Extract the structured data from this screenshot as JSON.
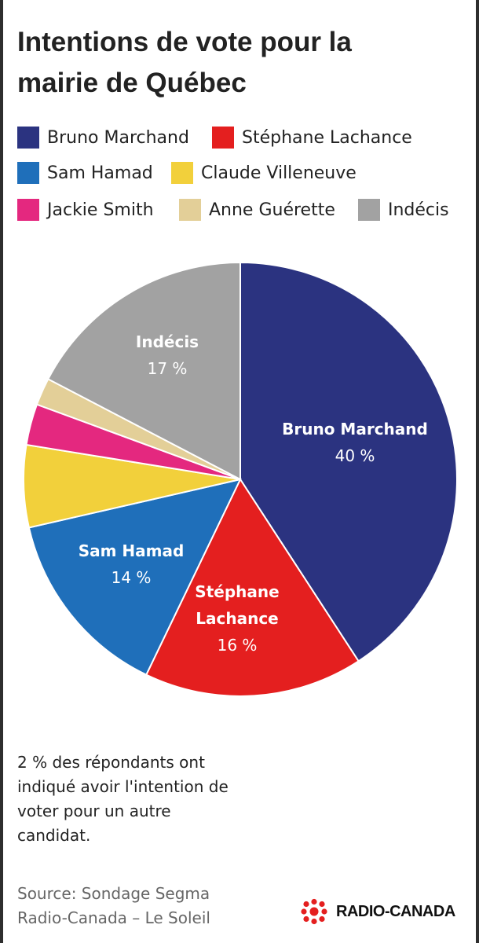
{
  "title_line1": "Intentions de vote pour la",
  "title_line2": "mairie de Québec",
  "legend": [
    {
      "label": "Bruno Marchand",
      "color": "#2b3380"
    },
    {
      "label": "Stéphane Lachance",
      "color": "#e41f1f"
    },
    {
      "label": "Sam Hamad",
      "color": "#1f6fba"
    },
    {
      "label": "Claude Villeneuve",
      "color": "#f2d03b"
    },
    {
      "label": "Jackie Smith",
      "color": "#e4287f"
    },
    {
      "label": "Anne Guérette",
      "color": "#e3cf98"
    },
    {
      "label": "Indécis",
      "color": "#a2a2a2"
    }
  ],
  "chart_data": {
    "type": "pie",
    "title": "Intentions de vote pour la mairie de Québec",
    "slices": [
      {
        "name": "Bruno Marchand",
        "value": 40,
        "label_lines": [
          "Bruno Marchand"
        ],
        "value_label": "40 %",
        "color": "#2b3380"
      },
      {
        "name": "Stéphane Lachance",
        "value": 16,
        "label_lines": [
          "Stéphane",
          "Lachance"
        ],
        "value_label": "16 %",
        "color": "#e41f1f"
      },
      {
        "name": "Sam Hamad",
        "value": 14,
        "label_lines": [
          "Sam Hamad"
        ],
        "value_label": "14 %",
        "color": "#1f6fba"
      },
      {
        "name": "Claude Villeneuve",
        "value": 6,
        "label_lines": [],
        "value_label": "",
        "color": "#f2d03b"
      },
      {
        "name": "Jackie Smith",
        "value": 3,
        "label_lines": [],
        "value_label": "",
        "color": "#e4287f"
      },
      {
        "name": "Anne Guérette",
        "value": 2,
        "label_lines": [],
        "value_label": "",
        "color": "#e3cf98"
      },
      {
        "name": "Indécis",
        "value": 17,
        "label_lines": [
          "Indécis"
        ],
        "value_label": "17 %",
        "color": "#a2a2a2"
      }
    ],
    "legend_position": "top"
  },
  "note_lines": [
    "2 % des répondants ont",
    "indiqué avoir l'intention de",
    "voter pour un autre",
    "candidat."
  ],
  "source_lines": [
    "Source: Sondage Segma",
    "Radio-Canada – Le Soleil"
  ],
  "logo_text": "RADIO-CANADA",
  "logo_icon": "radio-canada-gem-icon",
  "logo_color": "#e41f1f"
}
